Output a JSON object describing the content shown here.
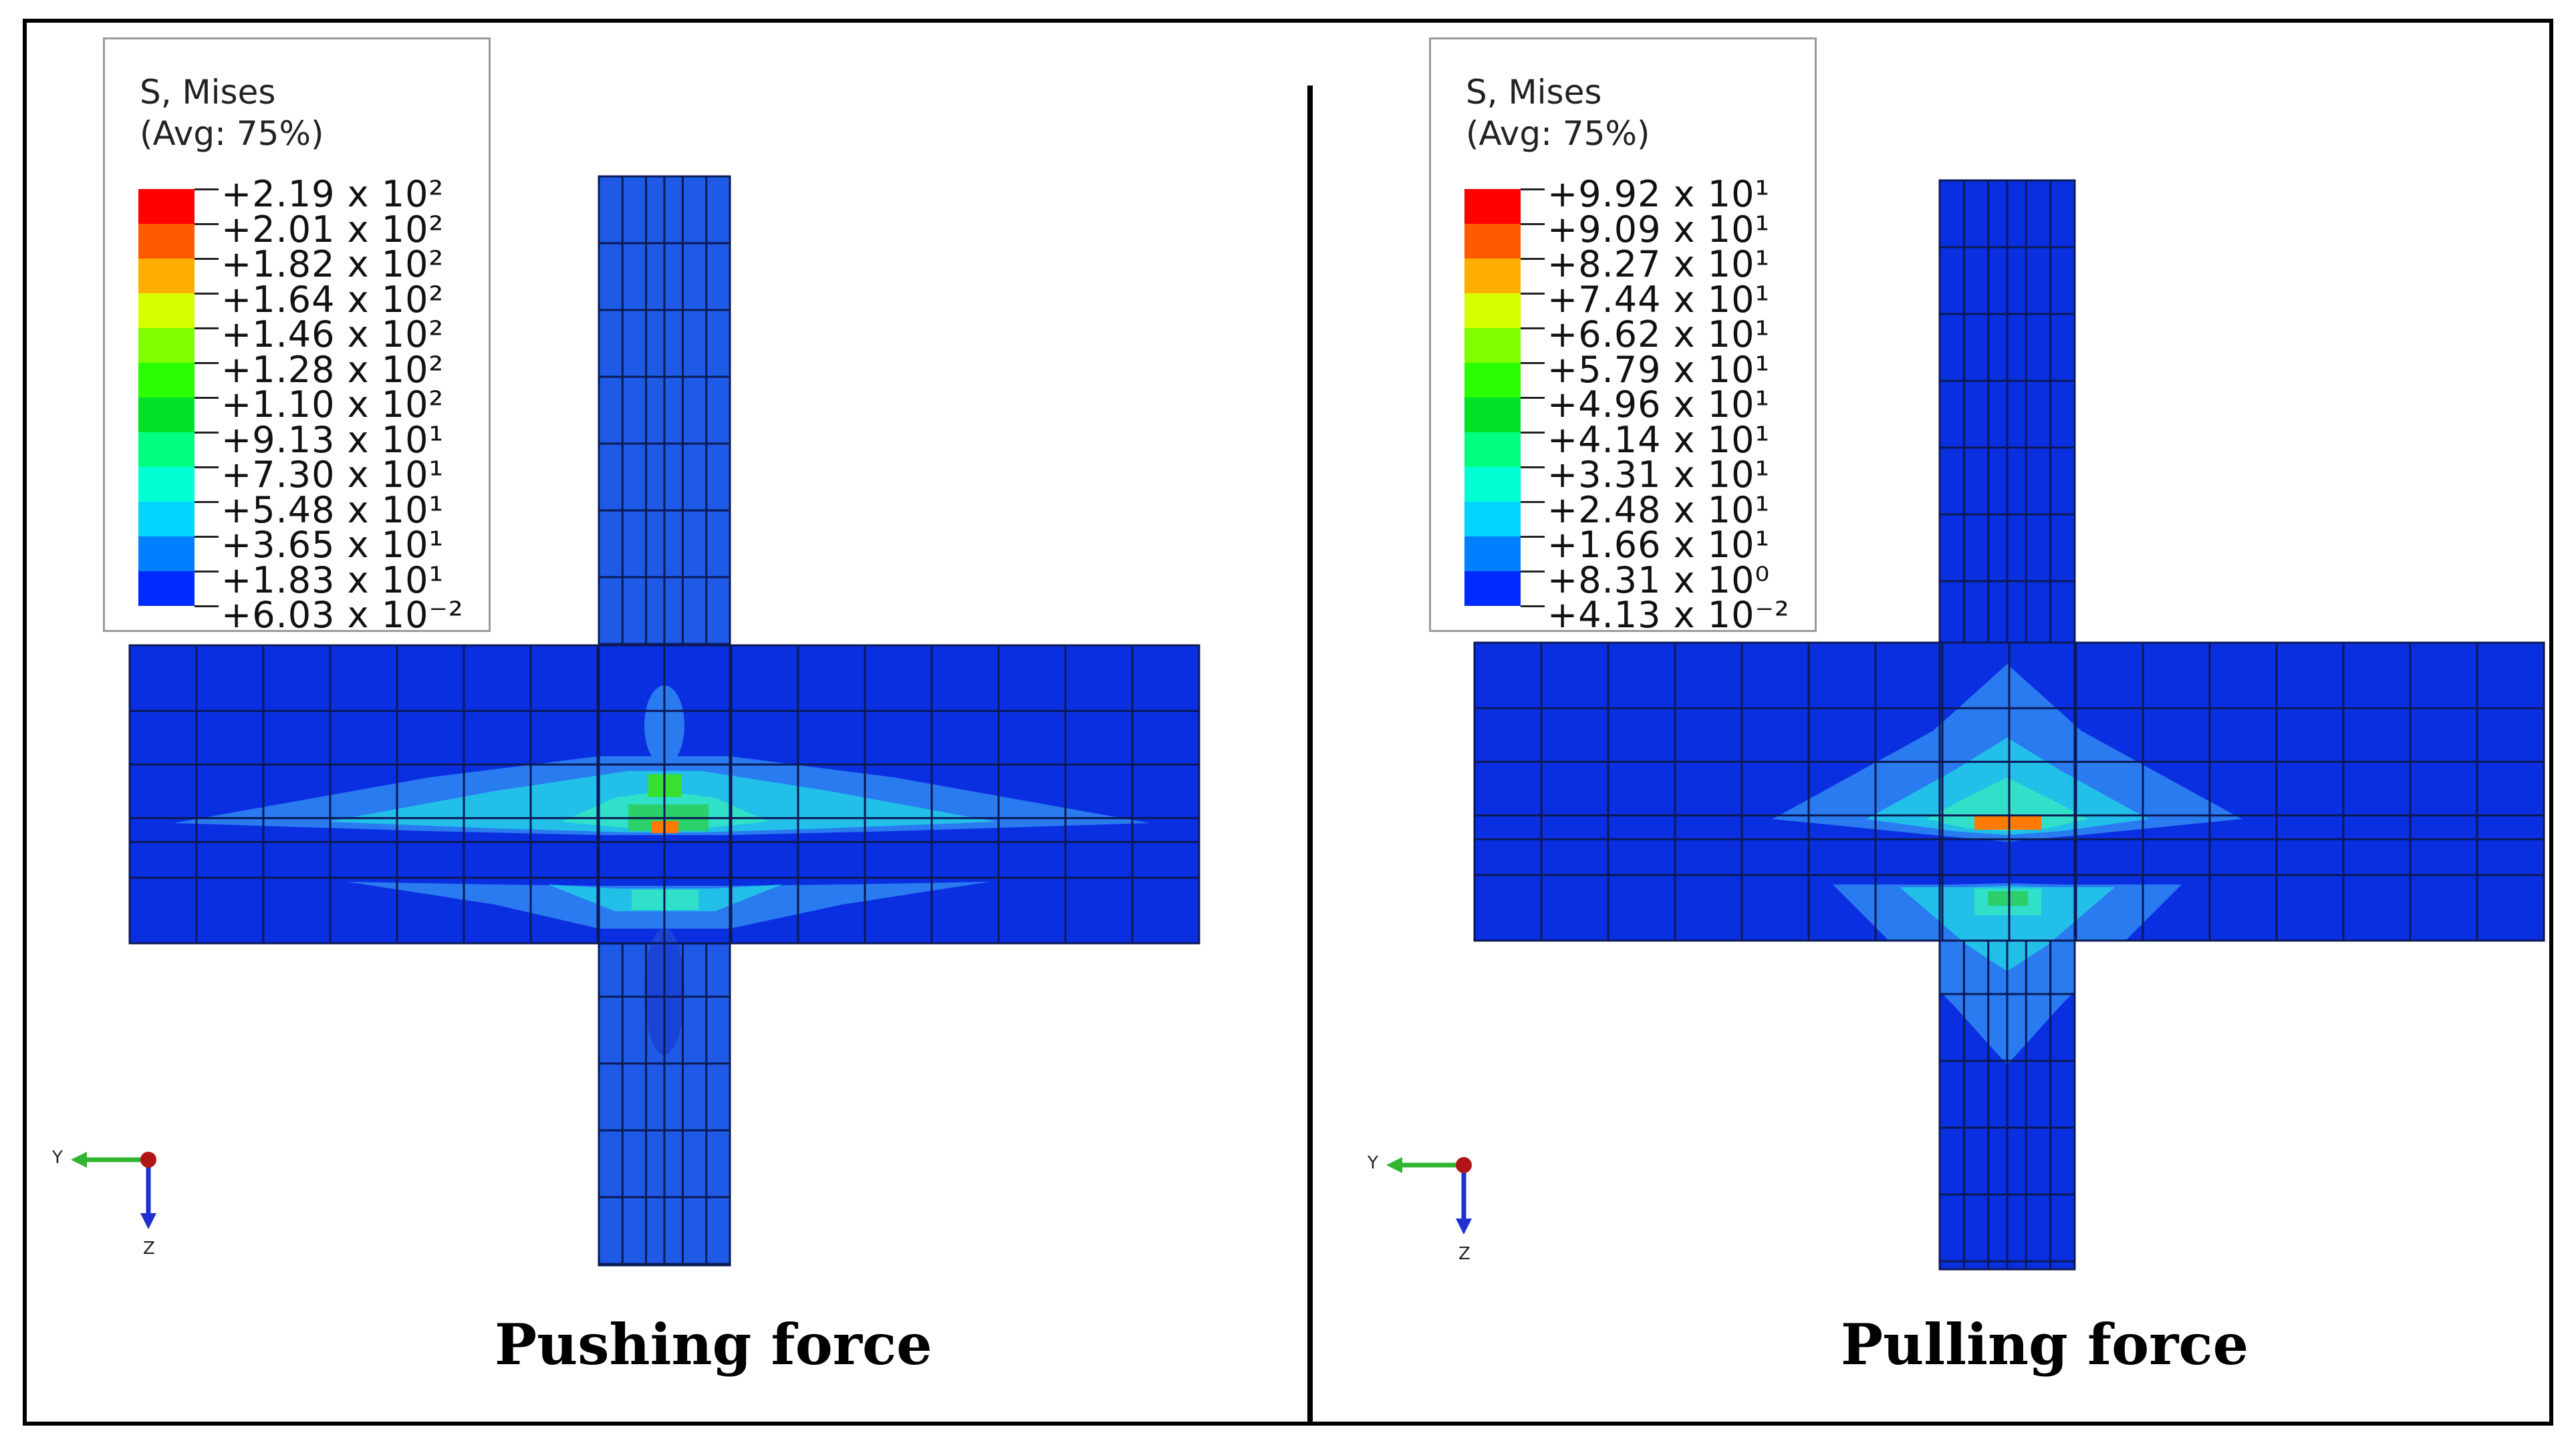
{
  "panels": [
    {
      "id": "pushing",
      "caption": "Pushing force",
      "legend_title_line1": "S, Mises",
      "legend_title_line2": "(Avg: 75%)",
      "legend_values": [
        "+2.19 x 10²",
        "+2.01 x 10²",
        "+1.82 x 10²",
        "+1.64 x 10²",
        "+1.46 x 10²",
        "+1.28 x 10²",
        "+1.10 x 10²",
        "+9.13 x 10¹",
        "+7.30 x 10¹",
        "+5.48 x 10¹",
        "+3.65 x 10¹",
        "+1.83 x 10¹",
        "+6.03 x 10⁻²"
      ],
      "axis_y": "Y",
      "axis_z": "Z"
    },
    {
      "id": "pulling",
      "caption": "Pulling force",
      "legend_title_line1": "S, Mises",
      "legend_title_line2": "(Avg: 75%)",
      "legend_values": [
        "+9.92 x 10¹",
        "+9.09 x 10¹",
        "+8.27 x 10¹",
        "+7.44 x 10¹",
        "+6.62 x 10¹",
        "+5.79 x 10¹",
        "+4.96 x 10¹",
        "+4.14 x 10¹",
        "+3.31 x 10¹",
        "+2.48 x 10¹",
        "+1.66 x 10¹",
        "+8.31 x 10⁰",
        "+4.13 x 10⁻²"
      ],
      "axis_y": "Y",
      "axis_z": "Z"
    }
  ],
  "colors": {
    "contour_scale": [
      "#ff0000",
      "#ff5a00",
      "#ffae00",
      "#d8ff00",
      "#80ff00",
      "#2aff00",
      "#00e12a",
      "#00ff7e",
      "#00ffd4",
      "#00d4ff",
      "#0080ff",
      "#002aff"
    ],
    "mesh_base": "#0a2fe0",
    "mesh_line": "#0b1a55",
    "axis_y": "#2fb52f",
    "axis_z": "#1f2fd0",
    "origin": "#b01515"
  }
}
